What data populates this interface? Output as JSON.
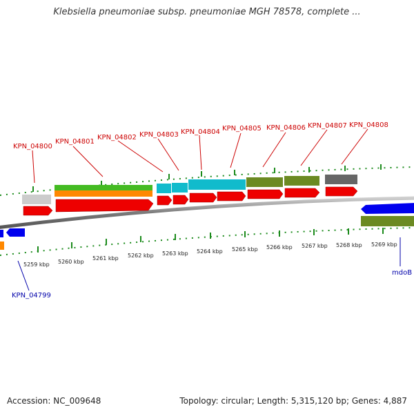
{
  "title": "Klebsiella pneumoniae subsp. pneumoniae MGH 78578, complete ...",
  "footer": {
    "accession": "Accession: NC_009648",
    "stats": "Topology: circular; Length: 5,315,120 bp; Genes: 4,887"
  },
  "scale_labels": [
    "5259 kbp",
    "5260 kbp",
    "5261 kbp",
    "5262 kbp",
    "5263 kbp",
    "5264 kbp",
    "5265 kbp",
    "5266 kbp",
    "5267 kbp",
    "5268 kbp",
    "5269 kbp"
  ],
  "gene_labels_top": [
    "KPN_04800",
    "KPN_04801",
    "KPN_04802",
    "KPN_04803",
    "KPN_04804",
    "KPN_04805",
    "KPN_04806",
    "KPN_04807",
    "KPN_04808"
  ],
  "gene_labels_bottom": [
    "KPN_04799",
    "mdoB"
  ],
  "colors": {
    "label_red": "#cc0000",
    "label_blue": "#0000aa",
    "tick_green": "#1a8a1a",
    "cds_red": "#ee0000",
    "cds_blue": "#0000ee",
    "feature_green": "#44bb22",
    "feature_orange": "#ff8800",
    "feature_cyan": "#11bbcc",
    "feature_olive": "#6b8a22",
    "feature_gray": "#cccccc",
    "feature_darkgray": "#666666",
    "backbone": "#888888"
  }
}
